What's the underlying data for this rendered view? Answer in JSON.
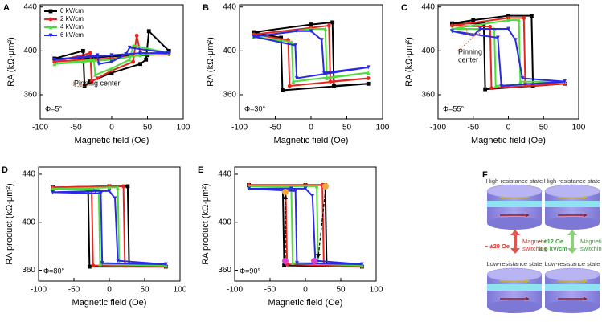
{
  "chart_data": [
    {
      "type": "line",
      "panel": "A",
      "phi": "Φ=5°",
      "xlabel": "Magnetic field (Oe)",
      "ylabel": "RA (kΩ·μm²)",
      "xlim": [
        -100,
        100
      ],
      "xticks": [
        -100,
        -50,
        0,
        50,
        100
      ],
      "ylim": [
        338,
        442
      ],
      "yticks": [
        360,
        400,
        440
      ],
      "legend": true,
      "annotation": "Pinning center",
      "series": [
        {
          "name": "0 kV/cm",
          "color": "#000000",
          "x": [
            -80,
            -40,
            -38,
            -30,
            0,
            40,
            48,
            52,
            80,
            50,
            0,
            -40,
            -80
          ],
          "values": [
            393,
            400,
            368,
            372,
            380,
            388,
            392,
            418,
            400,
            396,
            395,
            393,
            393
          ]
        },
        {
          "name": "2 kV/cm",
          "color": "#e8241c",
          "x": [
            -80,
            -30,
            -28,
            -20,
            0,
            30,
            35,
            40,
            80,
            40,
            0,
            -40,
            -80
          ],
          "values": [
            390,
            398,
            372,
            375,
            382,
            390,
            414,
            398,
            397,
            396,
            393,
            392,
            390
          ]
        },
        {
          "name": "4 kV/cm",
          "color": "#4cdc3c",
          "x": [
            -80,
            -25,
            -23,
            0,
            25,
            30,
            80,
            40,
            0,
            -40,
            -80
          ],
          "values": [
            388,
            392,
            378,
            384,
            392,
            405,
            398,
            396,
            392,
            390,
            388
          ]
        },
        {
          "name": "6 kV/cm",
          "color": "#2a2ae6",
          "x": [
            -80,
            -20,
            -18,
            0,
            20,
            25,
            80,
            40,
            0,
            -40,
            -80
          ],
          "values": [
            392,
            396,
            388,
            390,
            397,
            403,
            398,
            398,
            396,
            394,
            392
          ]
        }
      ]
    },
    {
      "type": "line",
      "panel": "B",
      "phi": "Φ=30°",
      "xlabel": "Magnetic field (Oe)",
      "ylabel": "RA (kΩ·μm²)",
      "xlim": [
        -100,
        100
      ],
      "xticks": [
        -100,
        -50,
        0,
        50,
        100
      ],
      "ylim": [
        338,
        442
      ],
      "yticks": [
        360,
        400,
        440
      ],
      "series": [
        {
          "color": "#000000",
          "x": [
            -80,
            0,
            30,
            32,
            80,
            -40,
            -42,
            -80
          ],
          "values": [
            417,
            424,
            426,
            368,
            370,
            364,
            412,
            417
          ]
        },
        {
          "color": "#e8241c",
          "x": [
            -80,
            0,
            25,
            27,
            80,
            -30,
            -32,
            -80
          ],
          "values": [
            415,
            421,
            423,
            372,
            375,
            368,
            410,
            415
          ]
        },
        {
          "color": "#4cdc3c",
          "x": [
            -80,
            0,
            20,
            22,
            80,
            -25,
            -27,
            -80
          ],
          "values": [
            413,
            420,
            420,
            375,
            380,
            372,
            408,
            413
          ]
        },
        {
          "color": "#2a2ae6",
          "x": [
            -80,
            -20,
            0,
            15,
            18,
            80,
            -20,
            -22,
            -80
          ],
          "values": [
            413,
            418,
            418,
            410,
            380,
            385,
            375,
            405,
            413
          ]
        }
      ]
    },
    {
      "type": "line",
      "panel": "C",
      "phi": "Φ=55°",
      "xlabel": "Magnetic field (Oe)",
      "ylabel": "RA (kΩ·μm²)",
      "xlim": [
        -100,
        100
      ],
      "xticks": [
        -100,
        -50,
        0,
        50,
        100
      ],
      "ylim": [
        338,
        442
      ],
      "yticks": [
        360,
        400,
        440
      ],
      "annotation": [
        "Pinning",
        "center"
      ],
      "series": [
        {
          "color": "#000000",
          "x": [
            -80,
            -50,
            0,
            33,
            35,
            80,
            -33,
            -35,
            -80
          ],
          "values": [
            425,
            428,
            432,
            432,
            368,
            370,
            365,
            425,
            425
          ]
        },
        {
          "color": "#e8241c",
          "x": [
            -80,
            0,
            22,
            24,
            80,
            -24,
            -26,
            -80
          ],
          "values": [
            423,
            430,
            430,
            370,
            370,
            366,
            422,
            423
          ]
        },
        {
          "color": "#4cdc3c",
          "x": [
            -80,
            0,
            15,
            17,
            80,
            -18,
            -20,
            -80
          ],
          "values": [
            420,
            428,
            428,
            372,
            372,
            368,
            420,
            420
          ]
        },
        {
          "color": "#2a2ae6",
          "x": [
            -80,
            -50,
            -40,
            0,
            10,
            20,
            80,
            -10,
            -15,
            -80
          ],
          "values": [
            418,
            414,
            420,
            420,
            410,
            375,
            372,
            368,
            412,
            418
          ]
        }
      ]
    },
    {
      "type": "line",
      "panel": "D",
      "phi": "Φ=80°",
      "xlabel": "Magnetic field (Oe)",
      "ylabel": "RA product (kΩ·μm²)",
      "xlim": [
        -100,
        100
      ],
      "xticks": [
        -100,
        -50,
        0,
        50,
        100
      ],
      "ylim": [
        351,
        446
      ],
      "yticks": [
        360,
        400,
        440
      ],
      "series": [
        {
          "color": "#000000",
          "x": [
            -80,
            0,
            26,
            28,
            80,
            -28,
            -30,
            -80
          ],
          "values": [
            429,
            430,
            430,
            364,
            363,
            363,
            428,
            429
          ]
        },
        {
          "color": "#e8241c",
          "x": [
            -80,
            0,
            20,
            22,
            80,
            -23,
            -25,
            -80
          ],
          "values": [
            429,
            430,
            430,
            364,
            363,
            364,
            428,
            429
          ]
        },
        {
          "color": "#4cdc3c",
          "x": [
            -80,
            0,
            12,
            14,
            80,
            -13,
            -15,
            -80
          ],
          "values": [
            428,
            429,
            429,
            366,
            364,
            365,
            427,
            428
          ]
        },
        {
          "color": "#2a2ae6",
          "x": [
            -80,
            -20,
            0,
            8,
            12,
            80,
            -10,
            -12,
            -80
          ],
          "values": [
            425,
            426,
            426,
            420,
            368,
            365,
            366,
            424,
            425
          ]
        }
      ]
    },
    {
      "type": "line",
      "panel": "E",
      "phi": "Φ=90°",
      "xlabel": "Magnetic field (Oe)",
      "ylabel": "RA product (kΩ·μm²)",
      "xlim": [
        -100,
        100
      ],
      "xticks": [
        -100,
        -50,
        0,
        50,
        100
      ],
      "ylim": [
        351,
        446
      ],
      "yticks": [
        360,
        400,
        440
      ],
      "series": [
        {
          "color": "#000000",
          "x": [
            -80,
            0,
            28,
            30,
            80,
            -30,
            -32,
            -80
          ],
          "values": [
            431,
            431,
            431,
            364,
            363,
            364,
            430,
            431
          ]
        },
        {
          "color": "#e8241c",
          "x": [
            -80,
            0,
            24,
            26,
            80,
            -26,
            -28,
            -80
          ],
          "values": [
            431,
            431,
            431,
            365,
            363,
            365,
            430,
            431
          ]
        },
        {
          "color": "#4cdc3c",
          "x": [
            -80,
            0,
            16,
            18,
            80,
            -18,
            -20,
            -80
          ],
          "values": [
            430,
            430,
            430,
            366,
            364,
            366,
            429,
            430
          ]
        },
        {
          "color": "#2a2ae6",
          "x": [
            -80,
            -20,
            0,
            10,
            14,
            80,
            -12,
            -14,
            -80
          ],
          "values": [
            428,
            428,
            428,
            422,
            368,
            365,
            366,
            426,
            428
          ]
        }
      ]
    }
  ],
  "diagram": {
    "panel": "F",
    "top_left": "High-resistance state",
    "top_right": "High-resistance state",
    "bottom_left": "Low-resistance state",
    "bottom_right": "Low-resistance state",
    "left_field": "~ ±29 Oe",
    "left_switch": [
      "Magnetic",
      "switching"
    ],
    "right_field": [
      "~ ±12 Oe",
      "& 6 kV/cm"
    ],
    "right_switch": [
      "Magnetic",
      "switching"
    ]
  }
}
